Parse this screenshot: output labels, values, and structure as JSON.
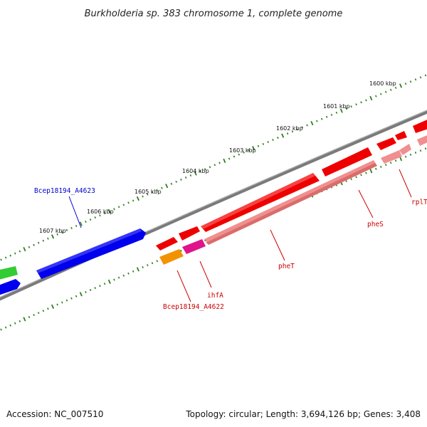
{
  "title": "Burkholderia sp. 383 chromosome 1, complete genome",
  "footer": {
    "accession": "Accession: NC_007510",
    "summary": "Topology: circular; Length: 3,694,126 bp; Genes: 3,408"
  },
  "ruler_labels": [
    "1600 kbp",
    "1601 kbp",
    "1602 kbp",
    "1603 kbp",
    "1604 kbp",
    "1605 kbp",
    "1606 kbp",
    "1607 kbp"
  ],
  "gene_labels": {
    "bcep_a4623": "Bcep18194_A4623",
    "bcep_a4622": "Bcep18194_A4622",
    "ihfA": "ihfA",
    "pheT": "pheT",
    "pheS": "pheS",
    "rplT": "rplT"
  },
  "colors": {
    "backbone": "#888888",
    "ticks": "#2e7d1e",
    "forward_cds": "#0000ee",
    "reverse_cds": "#ee0000",
    "reverse_rna": "#f08f8f",
    "ihfA": "#e0138a",
    "orange_cds": "#f39200",
    "green_cds": "#33cc33",
    "forward_label": "#0000cc",
    "reverse_label": "#cc0000"
  }
}
